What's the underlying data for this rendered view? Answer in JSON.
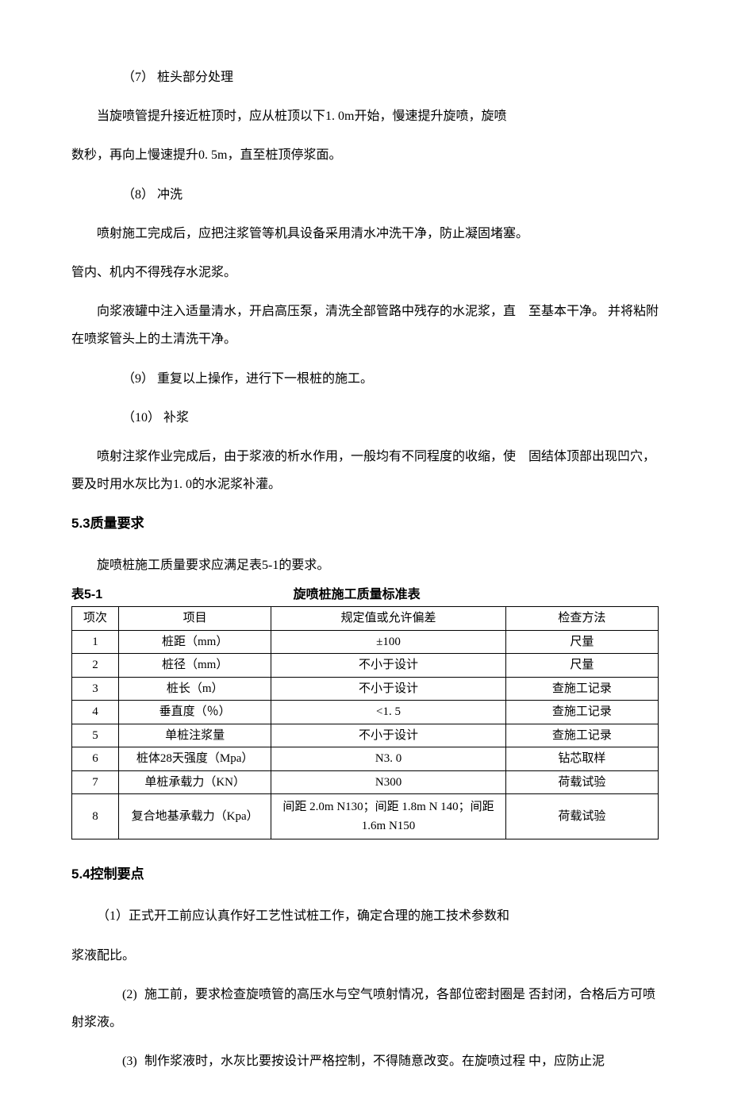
{
  "section_7": {
    "label": "（7）",
    "title": "桩头部分处理"
  },
  "para_7_1": "当旋喷管提升接近桩顶时，应从桩顶以下1. 0m开始，慢速提升旋喷，旋喷",
  "para_7_2": "数秒，再向上慢速提升0. 5m，直至桩顶停浆面。",
  "section_8": {
    "label": "（8）",
    "title": "冲洗"
  },
  "para_8_1": "喷射施工完成后，应把注浆管等机具设备采用清水冲洗干净，防止凝固堵塞。",
  "para_8_2": "管内、机内不得残存水泥浆。",
  "para_8_3": "向浆液罐中注入适量清水，开启高压泵，清洗全部管路中残存的水泥浆，直　至基本干净。 并将粘附在喷浆管头上的土清洗干净。",
  "section_9": {
    "label": "（9）",
    "title": "重复以上操作，进行下一根桩的施工。"
  },
  "section_10": {
    "label": "（10）",
    "title": "补浆"
  },
  "para_10_1": "喷射注浆作业完成后，由于浆液的析水作用，一般均有不同程度的收缩，使　固结体顶部出现凹穴，要及时用水灰比为1. 0的水泥浆补灌。",
  "heading_53": "5.3质量要求",
  "table_intro": "旋喷桩施工质量要求应满足表5-1的要求。",
  "table_label": "表5-1",
  "table_title": "旋喷桩施工质量标准表",
  "table": {
    "headers": [
      "项次",
      "项目",
      "规定值或允许偏差",
      "检查方法"
    ],
    "rows": [
      [
        "1",
        "桩距（mm）",
        "±100",
        "尺量"
      ],
      [
        "2",
        "桩径（mm）",
        "不小于设计",
        "尺量"
      ],
      [
        "3",
        "桩长（m）",
        "不小于设计",
        "查施工记录"
      ],
      [
        "4",
        "垂直度（％）",
        "<1. 5",
        "查施工记录"
      ],
      [
        "5",
        "单桩注浆量",
        "不小于设计",
        "查施工记录"
      ],
      [
        "6",
        "桩体28天强度（Mpa）",
        "N3. 0",
        "钻芯取样"
      ],
      [
        "7",
        "单桩承载力（KN）",
        "N300",
        "荷载试验"
      ],
      [
        "8",
        "复合地基承载力（Kpa）",
        "间距 2.0m N130；间距 1.8m N 140；间距 1.6m N150",
        "荷载试验"
      ]
    ]
  },
  "heading_54": "5.4控制要点",
  "ctrl_1": "（1）正式开工前应认真作好工艺性试桩工作，确定合理的施工技术参数和",
  "ctrl_1_cont": "浆液配比。",
  "ctrl_2_label": "(2)",
  "ctrl_2": "施工前，要求检查旋喷管的高压水与空气喷射情况，各部位密封圈是 否封闭，合格后方可喷射浆液。",
  "ctrl_3_label": "(3)",
  "ctrl_3": "制作浆液时，水灰比要按设计严格控制，不得随意改变。在旋喷过程 中，应防止泥"
}
